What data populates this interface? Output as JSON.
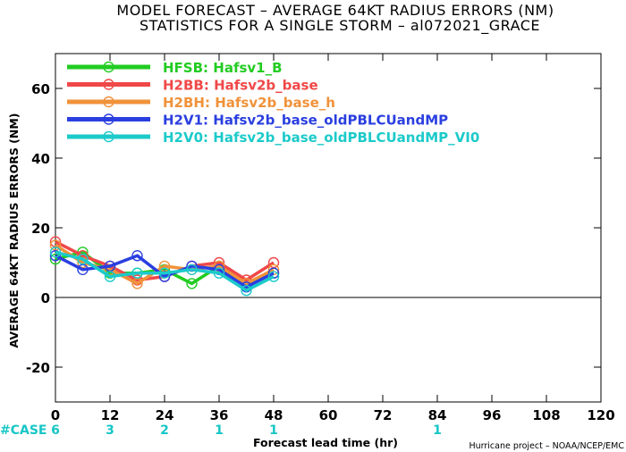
{
  "chart_data": {
    "type": "line",
    "title": "MODEL FORECAST – AVERAGE 64KT RADIUS ERRORS (NM)",
    "subtitle": "STATISTICS FOR A SINGLE STORM – al072021_GRACE",
    "xlabel": "Forecast lead time (hr)",
    "ylabel": "AVERAGE 64KT RADIUS ERRORS (NM)",
    "xlim": [
      0,
      120
    ],
    "ylim": [
      -30,
      70
    ],
    "xticks": [
      0,
      12,
      24,
      36,
      48,
      60,
      72,
      84,
      96,
      108,
      120
    ],
    "yticks": [
      -20,
      0,
      20,
      40,
      60
    ],
    "grid": false,
    "legend_position": "top-left",
    "cases_label": "#CASE",
    "cases": [
      {
        "x": 0,
        "n": "6"
      },
      {
        "x": 12,
        "n": "3"
      },
      {
        "x": 24,
        "n": "2"
      },
      {
        "x": 36,
        "n": "1"
      },
      {
        "x": 48,
        "n": "1"
      },
      {
        "x": 84,
        "n": "1"
      }
    ],
    "credit": "Hurricane project – NOAA/NCEP/EMC",
    "series": [
      {
        "key": "HFSB:",
        "name": "Hafsv1_B",
        "color": "#22cc22",
        "x": [
          0,
          6,
          12,
          18,
          24,
          30,
          36,
          42,
          48
        ],
        "y": [
          11,
          13,
          7,
          7,
          8,
          4,
          9,
          4,
          7
        ]
      },
      {
        "key": "H2BB:",
        "name": "Hafsv2b_base",
        "color": "#f04848",
        "x": [
          0,
          6,
          12,
          18,
          24,
          30,
          36,
          42,
          48
        ],
        "y": [
          16,
          12,
          9,
          5,
          6,
          9,
          10,
          5,
          10
        ]
      },
      {
        "key": "H2BH:",
        "name": "Hafsv2b_base_h",
        "color": "#f0923a",
        "x": [
          0,
          6,
          12,
          18,
          24,
          30,
          36,
          42,
          48
        ],
        "y": [
          15,
          10,
          8,
          4,
          9,
          8,
          9,
          4,
          8
        ]
      },
      {
        "key": "H2V1:",
        "name": "Hafsv2b_base_oldPBLCUandMP",
        "color": "#2a3fe0",
        "x": [
          0,
          6,
          12,
          18,
          24,
          30,
          36,
          42,
          48
        ],
        "y": [
          12,
          8,
          9,
          12,
          6,
          9,
          8,
          3,
          7
        ]
      },
      {
        "key": "H2V0:",
        "name": "Hafsv2b_base_oldPBLCUandMP_VI0",
        "color": "#1ccaca",
        "x": [
          0,
          6,
          12,
          18,
          24,
          30,
          36,
          42,
          48
        ],
        "y": [
          13,
          11,
          6,
          7,
          7,
          8,
          7,
          2,
          6
        ]
      }
    ]
  }
}
